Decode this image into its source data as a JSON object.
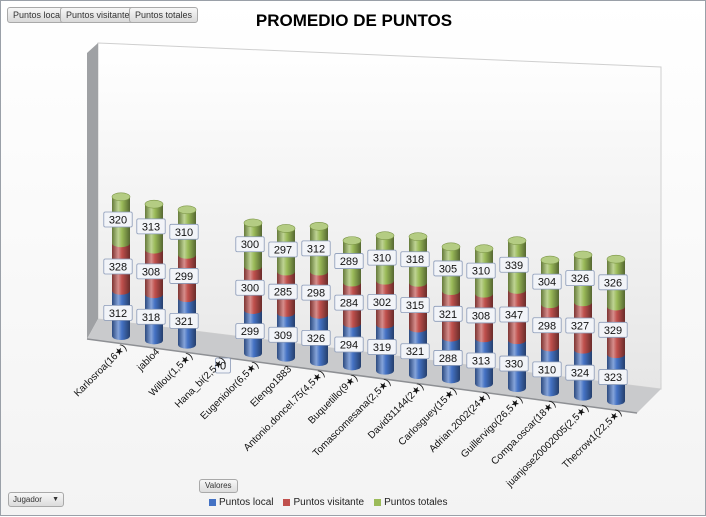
{
  "field_buttons": [
    "Puntos local",
    "Puntos visitante",
    "Puntos totales"
  ],
  "filter": {
    "label": "Jugador",
    "arrow": "▼"
  },
  "values_button": "Valores",
  "legend_placement": "bottom",
  "colors": {
    "local": "#4472C4",
    "visitante": "#C0504D",
    "totales": "#9BBB59"
  },
  "chart_data": {
    "type": "bar",
    "stacked": true,
    "title": "PROMEDIO DE PUNTOS",
    "xlabel": "",
    "ylabel": "",
    "categories": [
      "Karlosroa(16★)",
      "jablo4",
      "Willou(1,5★)",
      "Hana_bi(2,5★)",
      "Eugeniolor(6,5★)",
      "Elengo1883",
      "Antonio.doncel.75(4,5★)",
      "Buquetillo(9★)",
      "Tomascomesana(2,5★)",
      "David31144(2★)",
      "Carlosguey(15★)",
      "Adrian.2002(24★)",
      "Guillervigo(26,5★)",
      "Compa.oscar(18★)",
      "juanjose20002005(2,5★)",
      "Thecrow1(22,5★)"
    ],
    "series": [
      {
        "name": "Puntos local",
        "values": [
          312,
          318,
          321,
          0,
          299,
          309,
          326,
          294,
          319,
          321,
          288,
          313,
          330,
          310,
          324,
          323
        ]
      },
      {
        "name": "Puntos visitante",
        "values": [
          328,
          308,
          299,
          0,
          300,
          285,
          298,
          284,
          302,
          315,
          321,
          308,
          347,
          298,
          327,
          329
        ]
      },
      {
        "name": "Puntos totales",
        "values": [
          320,
          313,
          310,
          0,
          300,
          297,
          312,
          289,
          310,
          318,
          305,
          310,
          339,
          304,
          326,
          326
        ]
      }
    ],
    "data_labels": [
      [
        "312",
        "328",
        "320"
      ],
      [
        "318",
        "308",
        "313"
      ],
      [
        "321",
        "299",
        "310"
      ],
      [
        "0"
      ],
      [
        "299",
        "300",
        "300"
      ],
      [
        "309",
        "285",
        "297"
      ],
      [
        "326",
        "298",
        "312"
      ],
      [
        "294",
        "284",
        "289"
      ],
      [
        "319",
        "302",
        "310"
      ],
      [
        "321",
        "315",
        "318"
      ],
      [
        "288",
        "321",
        "305"
      ],
      [
        "313",
        "308",
        "310"
      ],
      [
        "330",
        "347",
        "339"
      ],
      [
        "310",
        "298",
        "304"
      ],
      [
        "324",
        "327",
        "326"
      ],
      [
        "323",
        "329",
        "326"
      ]
    ],
    "ylim": [
      0,
      1000
    ],
    "grid": false
  }
}
